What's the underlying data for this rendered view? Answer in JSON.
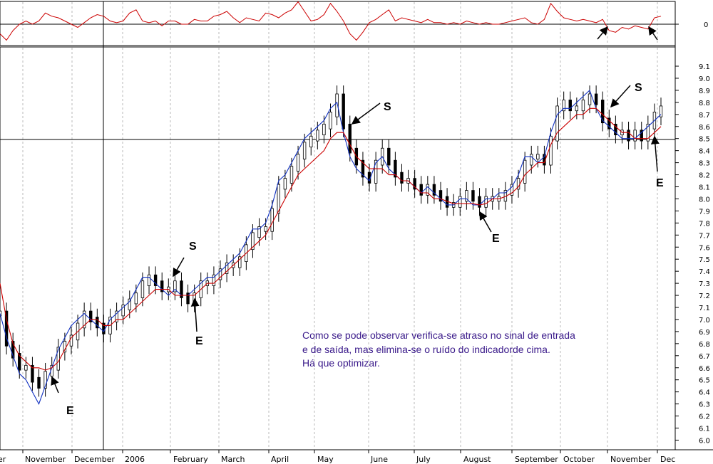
{
  "chart_data": {
    "type": "line",
    "panels": [
      "oscillator",
      "price"
    ],
    "oscillator_panel": {
      "yticks": [
        "0"
      ],
      "series": [
        {
          "color": "#cc0000",
          "values": [
            -0.3,
            -0.5,
            -0.2,
            0.0,
            0.1,
            0.0,
            0.1,
            0.35,
            0.25,
            0.2,
            0.1,
            0.0,
            -0.1,
            0.05,
            0.2,
            0.3,
            0.25,
            0.1,
            0.05,
            0.1,
            0.35,
            0.45,
            0.1,
            0.05,
            0.1,
            -0.05,
            0.1,
            0.1,
            0.0,
            0.0,
            0.15,
            0.1,
            0.1,
            0.25,
            0.3,
            0.4,
            0.2,
            0.05,
            0.2,
            0.15,
            0.1,
            0.35,
            0.3,
            0.2,
            0.35,
            0.45,
            0.7,
            0.4,
            0.1,
            0.15,
            0.3,
            0.65,
            0.4,
            0.1,
            -0.3,
            -0.5,
            -0.25,
            0.05,
            0.15,
            0.3,
            0.45,
            0.1,
            0.2,
            0.15,
            0.1,
            0.05,
            0.15,
            0.05,
            0.05,
            0.0,
            0.05,
            0.0,
            0.1,
            0.05,
            0.0,
            0.05,
            0.0,
            0.0,
            0.05,
            0.1,
            0.15,
            0.2,
            0.05,
            0.0,
            0.15,
            0.65,
            0.4,
            0.2,
            0.15,
            0.1,
            0.15,
            0.1,
            0.05,
            0.15,
            -0.2,
            -0.25,
            -0.1,
            -0.15,
            -0.05,
            -0.1,
            -0.15,
            0.2,
            0.25
          ]
        }
      ]
    },
    "price_panel": {
      "ylim": [
        5.95,
        9.2
      ],
      "yticks": [
        "6.0",
        "6.1",
        "6.2",
        "6.3",
        "6.4",
        "6.5",
        "6.6",
        "6.7",
        "6.8",
        "6.9",
        "7.0",
        "7.1",
        "7.2",
        "7.3",
        "7.4",
        "7.5",
        "7.6",
        "7.7",
        "7.8",
        "7.9",
        "8.0",
        "8.1",
        "8.2",
        "8.3",
        "8.4",
        "8.5",
        "8.6",
        "8.7",
        "8.8",
        "8.9",
        "9.0",
        "9.1"
      ],
      "xlabels": [
        "ber",
        "November",
        "December",
        "2006",
        "February",
        "March",
        "April",
        "May",
        "June",
        "July",
        "August",
        "September",
        "October",
        "November",
        "Dec"
      ],
      "price": [
        7.05,
        6.8,
        6.7,
        6.6,
        6.6,
        6.5,
        6.45,
        6.55,
        6.6,
        6.75,
        6.8,
        6.85,
        6.95,
        7.05,
        7.0,
        6.95,
        6.9,
        7.0,
        7.05,
        7.1,
        7.15,
        7.2,
        7.3,
        7.35,
        7.3,
        7.25,
        7.25,
        7.3,
        7.2,
        7.15,
        7.2,
        7.3,
        7.3,
        7.35,
        7.4,
        7.45,
        7.45,
        7.5,
        7.6,
        7.7,
        7.75,
        7.75,
        7.9,
        8.1,
        8.15,
        8.25,
        8.35,
        8.45,
        8.5,
        8.55,
        8.6,
        8.7,
        8.85,
        8.6,
        8.4,
        8.3,
        8.2,
        8.15,
        8.3,
        8.4,
        8.3,
        8.2,
        8.15,
        8.15,
        8.1,
        8.05,
        8.1,
        8.05,
        8.0,
        7.95,
        7.95,
        8.0,
        8.05,
        8.0,
        7.95,
        8.0,
        8.0,
        8.0,
        8.05,
        8.1,
        8.15,
        8.3,
        8.35,
        8.35,
        8.3,
        8.5,
        8.75,
        8.8,
        8.75,
        8.75,
        8.8,
        8.85,
        8.8,
        8.65,
        8.6,
        8.55,
        8.55,
        8.5,
        8.55,
        8.5,
        8.6,
        8.7,
        8.75
      ],
      "series": [
        {
          "color": "#1030c0",
          "values": [
            7.05,
            6.85,
            6.7,
            6.55,
            6.5,
            6.4,
            6.3,
            6.45,
            6.6,
            6.75,
            6.85,
            6.95,
            7.0,
            7.05,
            7.0,
            6.95,
            6.9,
            7.0,
            7.05,
            7.1,
            7.15,
            7.25,
            7.35,
            7.35,
            7.3,
            7.25,
            7.2,
            7.25,
            7.2,
            7.2,
            7.25,
            7.3,
            7.35,
            7.35,
            7.4,
            7.45,
            7.5,
            7.55,
            7.65,
            7.75,
            7.75,
            7.8,
            7.95,
            8.15,
            8.2,
            8.3,
            8.4,
            8.5,
            8.55,
            8.6,
            8.65,
            8.75,
            8.8,
            8.55,
            8.35,
            8.25,
            8.2,
            8.15,
            8.3,
            8.35,
            8.25,
            8.2,
            8.15,
            8.15,
            8.1,
            8.05,
            8.1,
            8.05,
            8.0,
            7.95,
            7.95,
            8.0,
            8.0,
            7.95,
            7.95,
            8.0,
            8.0,
            8.05,
            8.05,
            8.1,
            8.2,
            8.35,
            8.35,
            8.3,
            8.35,
            8.55,
            8.7,
            8.75,
            8.75,
            8.8,
            8.85,
            8.9,
            8.75,
            8.65,
            8.6,
            8.55,
            8.5,
            8.5,
            8.5,
            8.55,
            8.6,
            8.65,
            8.7
          ]
        },
        {
          "color": "#cc0000",
          "values": [
            7.3,
            7.0,
            6.8,
            6.7,
            6.65,
            6.6,
            6.6,
            6.58,
            6.6,
            6.65,
            6.75,
            6.85,
            6.9,
            6.95,
            7.0,
            7.0,
            6.95,
            6.95,
            7.0,
            7.0,
            7.05,
            7.1,
            7.15,
            7.2,
            7.25,
            7.25,
            7.25,
            7.2,
            7.2,
            7.2,
            7.2,
            7.25,
            7.3,
            7.3,
            7.35,
            7.4,
            7.45,
            7.5,
            7.55,
            7.6,
            7.65,
            7.7,
            7.8,
            7.9,
            8.0,
            8.1,
            8.2,
            8.25,
            8.3,
            8.35,
            8.4,
            8.5,
            8.55,
            8.55,
            8.45,
            8.35,
            8.3,
            8.25,
            8.25,
            8.25,
            8.2,
            8.2,
            8.15,
            8.15,
            8.1,
            8.05,
            8.05,
            8.0,
            8.0,
            7.98,
            7.96,
            7.96,
            7.96,
            7.96,
            7.95,
            7.96,
            8.0,
            8.0,
            8.02,
            8.05,
            8.1,
            8.2,
            8.25,
            8.3,
            8.3,
            8.45,
            8.55,
            8.6,
            8.65,
            8.7,
            8.7,
            8.75,
            8.75,
            8.7,
            8.65,
            8.6,
            8.55,
            8.55,
            8.5,
            8.5,
            8.5,
            8.55,
            8.6
          ]
        }
      ]
    },
    "annotations": {
      "text_lines": [
        "Como se pode observar verifica-se atraso no sinal de entrada",
        "e de saída, mas elimina-se o ruído do indicadorde cima.",
        "Há que optimizar."
      ],
      "markers": [
        "E",
        "S",
        "E",
        "S",
        "E",
        "S",
        "E"
      ]
    }
  }
}
